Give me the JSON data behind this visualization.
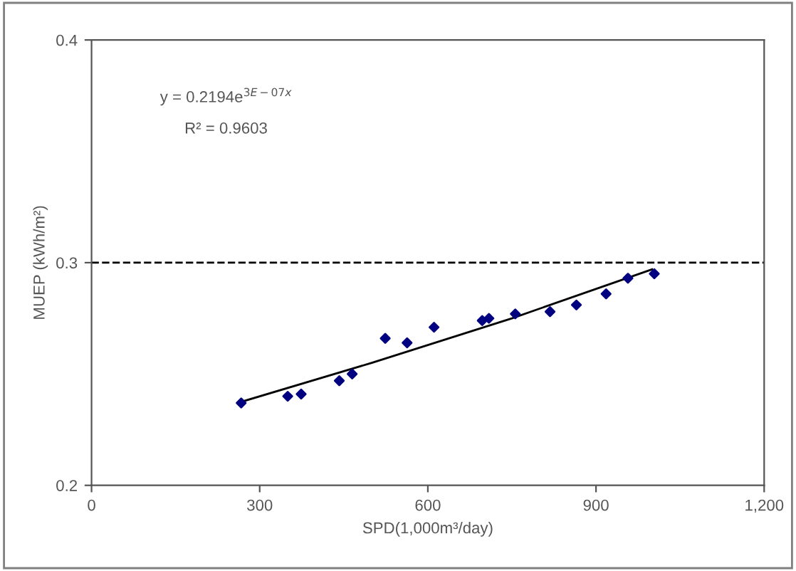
{
  "chart_data": {
    "type": "scatter",
    "xlabel": "SPD(1,000m³/day)",
    "ylabel": "MUEP (kWh/m²)",
    "annotations": [
      "y = 0.2194e$^{3E−07x}$",
      "R² = 0.9603"
    ],
    "series": [
      {
        "color": "#000080",
        "marker": "diamond",
        "x": [
          267,
          350,
          374,
          442,
          465,
          524,
          563,
          611,
          697,
          709,
          756,
          818,
          865,
          918,
          957,
          1004
        ],
        "values": [
          0.237,
          0.24,
          0.241,
          0.247,
          0.25,
          0.266,
          0.264,
          0.271,
          0.274,
          0.275,
          0.277,
          0.278,
          0.281,
          0.286,
          0.293,
          0.295
        ]
      },
      {
        "type": "line",
        "color": "#000000",
        "line_style": "solid",
        "x": [
          267,
          500,
          750,
          1000
        ],
        "values": [
          0.2375,
          0.255,
          0.275,
          0.297
        ]
      }
    ],
    "ref_lines": [
      {
        "axis": "y",
        "value": 0.3,
        "line_style": "dashed",
        "color": "#000000"
      }
    ],
    "xlim": [
      0,
      1200
    ],
    "xticks": [
      0,
      300,
      600,
      900,
      {
        "value": 1200,
        "label": "1,200"
      }
    ],
    "ylim": [
      0.2,
      0.4
    ],
    "yticks": [
      0.2,
      0.3,
      0.4
    ],
    "grid": false,
    "legend": false
  }
}
